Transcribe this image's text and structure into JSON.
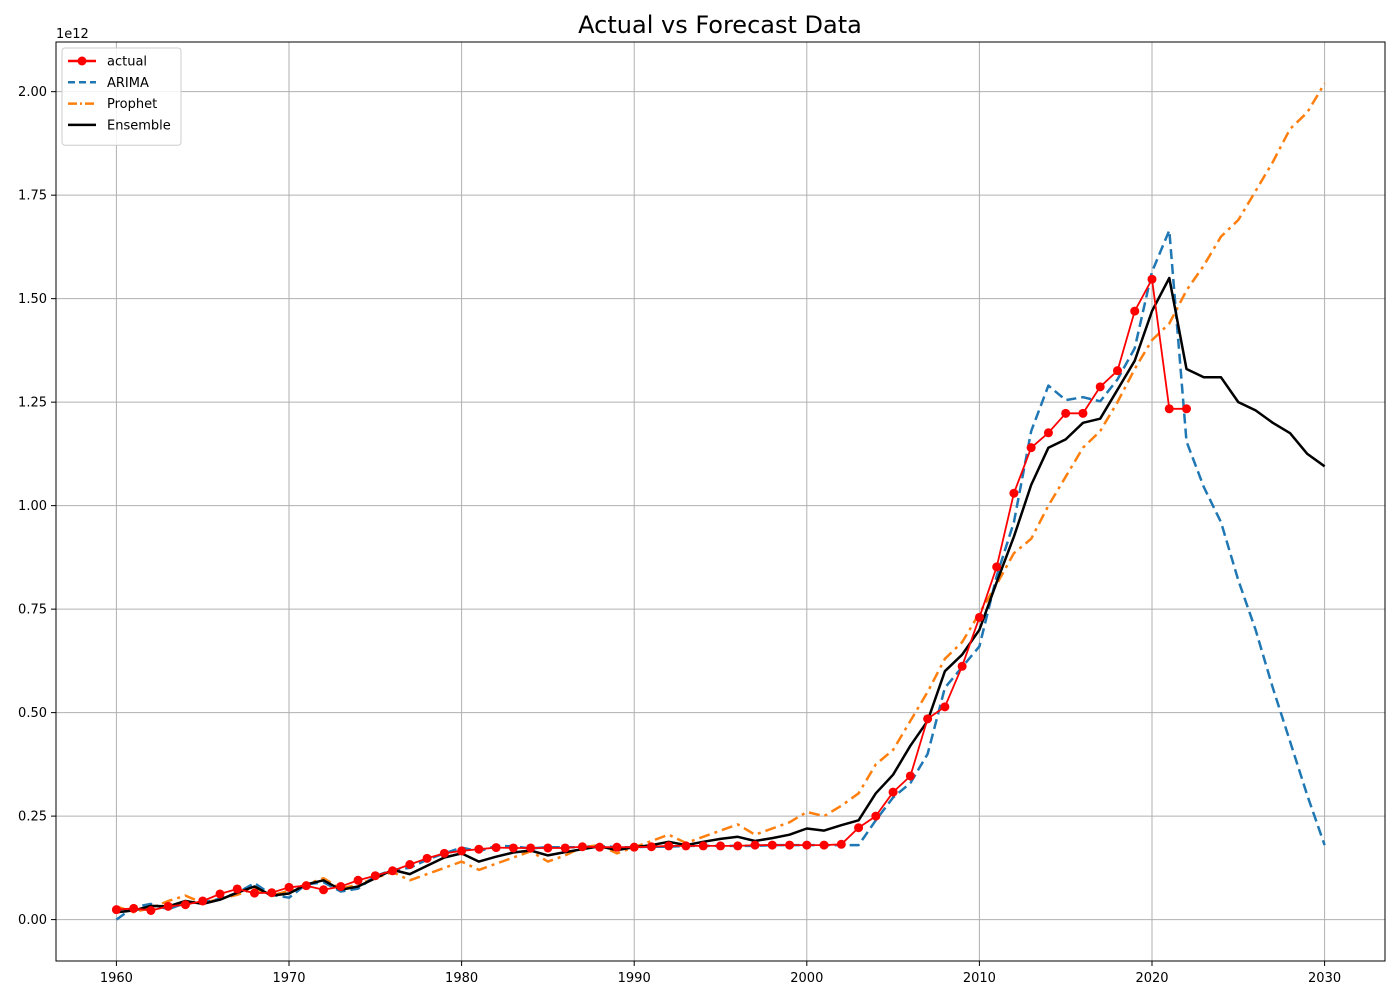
{
  "chart_data": {
    "type": "line",
    "title": "Actual vs Forecast Data",
    "xlabel": "",
    "ylabel": "",
    "y_offset_label": "1e12",
    "xlim": [
      1956.5,
      2033.5
    ],
    "ylim": [
      -0.1,
      2.12
    ],
    "x_ticks": [
      1960,
      1970,
      1980,
      1990,
      2000,
      2010,
      2020,
      2030
    ],
    "x_tick_labels": [
      "1960",
      "1970",
      "1980",
      "1990",
      "2000",
      "2010",
      "2020",
      "2030"
    ],
    "y_ticks": [
      0,
      0.25,
      0.5,
      0.75,
      1.0,
      1.25,
      1.5,
      1.75,
      2.0
    ],
    "y_tick_labels": [
      "0.00",
      "0.25",
      "0.50",
      "0.75",
      "1.00",
      "1.25",
      "1.50",
      "1.75",
      "2.00"
    ],
    "grid": true,
    "legend_position": "top-left",
    "series": [
      {
        "name": "actual",
        "color": "#ff0000",
        "style": "solid-marker",
        "x": [
          1960,
          1961,
          1962,
          1963,
          1964,
          1965,
          1966,
          1967,
          1968,
          1969,
          1970,
          1971,
          1972,
          1973,
          1974,
          1975,
          1976,
          1977,
          1978,
          1979,
          1980,
          1981,
          1982,
          1983,
          1984,
          1985,
          1986,
          1987,
          1988,
          1989,
          1990,
          1991,
          1992,
          1993,
          1994,
          1995,
          1996,
          1997,
          1998,
          1999,
          2000,
          2001,
          2002,
          2003,
          2004,
          2005,
          2006,
          2007,
          2008,
          2009,
          2010,
          2011,
          2012,
          2013,
          2014,
          2015,
          2016,
          2017,
          2018,
          2019,
          2020,
          2021,
          2022
        ],
        "y": [
          0.024,
          0.027,
          0.022,
          0.032,
          0.036,
          0.045,
          0.062,
          0.074,
          0.064,
          0.065,
          0.078,
          0.082,
          0.072,
          0.08,
          0.095,
          0.106,
          0.118,
          0.133,
          0.148,
          0.16,
          0.166,
          0.17,
          0.174,
          0.173,
          0.173,
          0.173,
          0.173,
          0.176,
          0.175,
          0.175,
          0.175,
          0.176,
          0.178,
          0.178,
          0.178,
          0.178,
          0.178,
          0.18,
          0.18,
          0.18,
          0.18,
          0.18,
          0.182,
          0.222,
          0.25,
          0.308,
          0.347,
          0.485,
          0.514,
          0.612,
          0.73,
          0.852,
          1.03,
          1.14,
          1.176,
          1.223,
          1.223,
          1.287,
          1.326,
          1.47,
          1.547,
          1.234,
          1.234
        ]
      },
      {
        "name": "ARIMA",
        "color": "#1f77b4",
        "style": "dashed",
        "x": [
          1960,
          1961,
          1962,
          1963,
          1964,
          1965,
          1966,
          1967,
          1968,
          1969,
          1970,
          1971,
          1972,
          1973,
          1974,
          1975,
          1976,
          1977,
          1978,
          1979,
          1980,
          1981,
          1982,
          1983,
          1984,
          1985,
          1986,
          1987,
          1988,
          1989,
          1990,
          1991,
          1992,
          1993,
          1994,
          1995,
          1996,
          1997,
          1998,
          1999,
          2000,
          2001,
          2002,
          2003,
          2004,
          2005,
          2006,
          2007,
          2008,
          2009,
          2010,
          2011,
          2012,
          2013,
          2014,
          2015,
          2016,
          2017,
          2018,
          2019,
          2020,
          2021,
          2022,
          2023,
          2024,
          2025,
          2026,
          2027,
          2028,
          2029,
          2030
        ],
        "y": [
          0.0,
          0.03,
          0.038,
          0.025,
          0.04,
          0.042,
          0.05,
          0.065,
          0.088,
          0.06,
          0.053,
          0.085,
          0.09,
          0.068,
          0.075,
          0.105,
          0.12,
          0.125,
          0.145,
          0.16,
          0.174,
          0.165,
          0.178,
          0.177,
          0.172,
          0.175,
          0.175,
          0.175,
          0.178,
          0.175,
          0.175,
          0.176,
          0.176,
          0.178,
          0.178,
          0.178,
          0.178,
          0.178,
          0.18,
          0.18,
          0.18,
          0.18,
          0.18,
          0.18,
          0.24,
          0.295,
          0.33,
          0.4,
          0.56,
          0.61,
          0.66,
          0.83,
          0.96,
          1.18,
          1.29,
          1.255,
          1.262,
          1.252,
          1.305,
          1.38,
          1.565,
          1.665,
          1.155,
          1.045,
          0.96,
          0.82,
          0.7,
          0.56,
          0.43,
          0.3,
          0.18
        ]
      },
      {
        "name": "Prophet",
        "color": "#ff7f0e",
        "style": "dashdot",
        "x": [
          1960,
          1961,
          1962,
          1963,
          1964,
          1965,
          1966,
          1967,
          1968,
          1969,
          1970,
          1971,
          1972,
          1973,
          1974,
          1975,
          1976,
          1977,
          1978,
          1979,
          1980,
          1981,
          1982,
          1983,
          1984,
          1985,
          1986,
          1987,
          1988,
          1989,
          1990,
          1991,
          1992,
          1993,
          1994,
          1995,
          1996,
          1997,
          1998,
          1999,
          2000,
          2001,
          2002,
          2003,
          2004,
          2005,
          2006,
          2007,
          2008,
          2009,
          2010,
          2011,
          2012,
          2013,
          2014,
          2015,
          2016,
          2017,
          2018,
          2019,
          2020,
          2021,
          2022,
          2023,
          2024,
          2025,
          2026,
          2027,
          2028,
          2029,
          2030
        ],
        "y": [
          0.032,
          0.018,
          0.028,
          0.045,
          0.058,
          0.04,
          0.05,
          0.06,
          0.075,
          0.058,
          0.07,
          0.085,
          0.1,
          0.075,
          0.085,
          0.1,
          0.115,
          0.095,
          0.11,
          0.125,
          0.14,
          0.12,
          0.135,
          0.15,
          0.165,
          0.14,
          0.155,
          0.175,
          0.18,
          0.16,
          0.175,
          0.19,
          0.205,
          0.185,
          0.2,
          0.215,
          0.23,
          0.205,
          0.22,
          0.235,
          0.26,
          0.25,
          0.275,
          0.305,
          0.375,
          0.41,
          0.48,
          0.55,
          0.63,
          0.67,
          0.74,
          0.81,
          0.885,
          0.92,
          1.0,
          1.07,
          1.14,
          1.18,
          1.25,
          1.33,
          1.4,
          1.44,
          1.52,
          1.58,
          1.65,
          1.69,
          1.76,
          1.83,
          1.91,
          1.95,
          2.02
        ]
      },
      {
        "name": "Ensemble",
        "color": "#000000",
        "style": "solid",
        "x": [
          1960,
          1961,
          1962,
          1963,
          1964,
          1965,
          1966,
          1967,
          1968,
          1969,
          1970,
          1971,
          1972,
          1973,
          1974,
          1975,
          1976,
          1977,
          1978,
          1979,
          1980,
          1981,
          1982,
          1983,
          1984,
          1985,
          1986,
          1987,
          1988,
          1989,
          1990,
          1991,
          1992,
          1993,
          1994,
          1995,
          1996,
          1997,
          1998,
          1999,
          2000,
          2001,
          2002,
          2003,
          2004,
          2005,
          2006,
          2007,
          2008,
          2009,
          2010,
          2011,
          2012,
          2013,
          2014,
          2015,
          2016,
          2017,
          2018,
          2019,
          2020,
          2021,
          2022,
          2023,
          2024,
          2025,
          2026,
          2027,
          2028,
          2029,
          2030
        ],
        "y": [
          0.018,
          0.022,
          0.033,
          0.032,
          0.045,
          0.038,
          0.048,
          0.065,
          0.08,
          0.058,
          0.063,
          0.085,
          0.095,
          0.072,
          0.08,
          0.1,
          0.12,
          0.11,
          0.13,
          0.15,
          0.16,
          0.14,
          0.152,
          0.162,
          0.167,
          0.155,
          0.163,
          0.17,
          0.177,
          0.168,
          0.175,
          0.18,
          0.188,
          0.18,
          0.188,
          0.195,
          0.2,
          0.19,
          0.197,
          0.205,
          0.22,
          0.215,
          0.228,
          0.24,
          0.305,
          0.35,
          0.42,
          0.48,
          0.6,
          0.64,
          0.7,
          0.815,
          0.925,
          1.05,
          1.14,
          1.16,
          1.2,
          1.21,
          1.28,
          1.35,
          1.47,
          1.55,
          1.33,
          1.31,
          1.31,
          1.25,
          1.23,
          1.2,
          1.175,
          1.125,
          1.095
        ]
      }
    ]
  }
}
